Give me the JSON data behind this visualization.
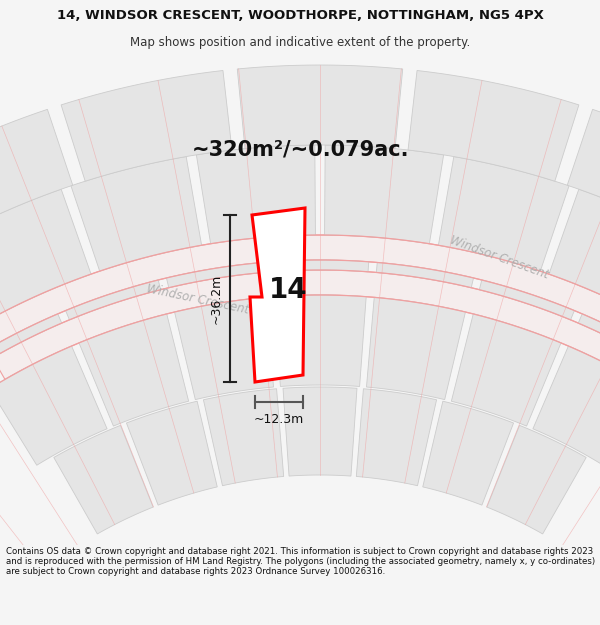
{
  "title_line1": "14, WINDSOR CRESCENT, WOODTHORPE, NOTTINGHAM, NG5 4PX",
  "title_line2": "Map shows position and indicative extent of the property.",
  "area_text": "~320m²/~0.079ac.",
  "width_label": "~12.3m",
  "height_label": "~36.2m",
  "number_label": "14",
  "street_label1": "Windsor Crescent",
  "street_label2": "Windsor Crescent",
  "footer_text": "Contains OS data © Crown copyright and database right 2021. This information is subject to Crown copyright and database rights 2023 and is reproduced with the permission of HM Land Registry. The polygons (including the associated geometry, namely x, y co-ordinates) are subject to Crown copyright and database rights 2023 Ordnance Survey 100026316.",
  "bg_color": "#f5f5f5",
  "map_bg": "#ffffff",
  "plot_fill": "#ffffff",
  "plot_edge": "#ff0000",
  "neighbor_fill": "#e5e5e5",
  "neighbor_edge": "#cccccc",
  "road_line_color": "#f0a0a0",
  "road_fill": "#f5eded",
  "street_label_color": "#b0b0b0",
  "dim_color": "#333333",
  "figsize": [
    6.0,
    6.25
  ],
  "dpi": 100
}
